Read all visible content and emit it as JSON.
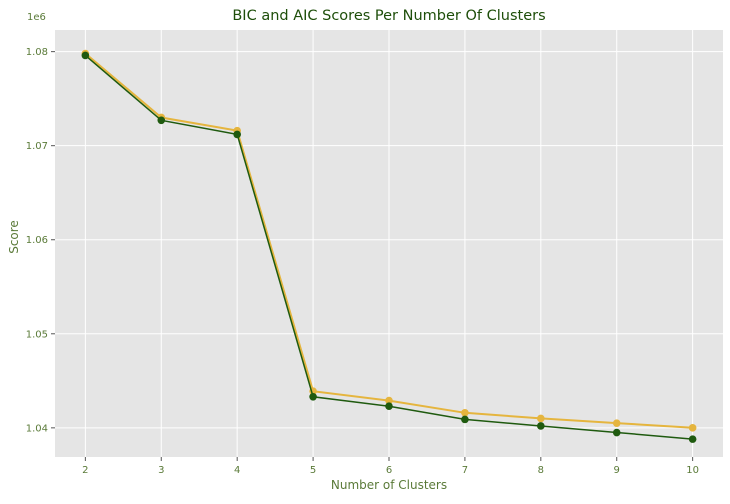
{
  "chart_data": {
    "type": "line",
    "title": "BIC and AIC Scores Per Number Of Clusters",
    "xlabel": "Number of Clusters",
    "ylabel": "Score",
    "y_offset_label": "1e6",
    "x": [
      2,
      3,
      4,
      5,
      6,
      7,
      8,
      9,
      10
    ],
    "xlim": [
      1.6,
      10.4
    ],
    "ylim": [
      1.0369,
      1.0823
    ],
    "x_ticks": [
      "2",
      "3",
      "4",
      "5",
      "6",
      "7",
      "8",
      "9",
      "10"
    ],
    "y_tick_values": [
      1.04,
      1.05,
      1.06,
      1.07,
      1.08
    ],
    "y_ticks": [
      "1.04",
      "1.05",
      "1.06",
      "1.07",
      "1.08"
    ],
    "grid": true,
    "series": [
      {
        "color": "#e5b53e",
        "values": [
          1.0798,
          1.073,
          1.0716,
          1.0439,
          1.0429,
          1.0416,
          1.041,
          1.0405,
          1.04
        ]
      },
      {
        "color": "#1f5a0f",
        "values": [
          1.0796,
          1.0727,
          1.0712,
          1.0433,
          1.0423,
          1.0409,
          1.0402,
          1.0395,
          1.0388
        ]
      }
    ],
    "colors": {
      "plot_background": "#e5e5e5",
      "grid": "#ffffff",
      "title": "#1e4e0a",
      "axis_text": "#5a7a38"
    }
  }
}
